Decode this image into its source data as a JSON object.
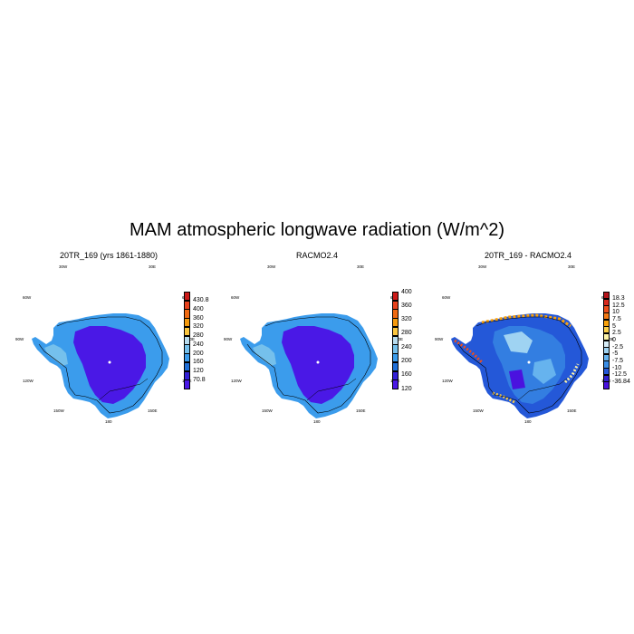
{
  "title": "MAM atmospheric longwave radiation (W/m^2)",
  "panels": [
    {
      "title": "20TR_169 (yrs 1861-1880)",
      "colorbar": {
        "labels": [
          "430.8",
          "400",
          "360",
          "320",
          "280",
          "240",
          "200",
          "160",
          "120",
          "70.8"
        ],
        "colors": [
          "#cc1a18",
          "#e8421d",
          "#f06a12",
          "#f59a0e",
          "#fbc640",
          "#b8dcef",
          "#75c0ec",
          "#3b9cec",
          "#1f6fd8",
          "#3320d6",
          "#4a18e6"
        ]
      },
      "grid_labels": [
        "30W",
        "30E",
        "60W",
        "60E",
        "90W",
        "90E",
        "120W",
        "120E",
        "150W",
        "150E",
        "180"
      ]
    },
    {
      "title": "RACMO2.4",
      "colorbar": {
        "labels": [
          "400",
          "360",
          "320",
          "280",
          "240",
          "200",
          "160",
          "120"
        ],
        "colors": [
          "#cc1a18",
          "#e8421d",
          "#f06a12",
          "#f59a0e",
          "#fbc640",
          "#b8dcef",
          "#75c0ec",
          "#3b9cec",
          "#1f6fd8",
          "#3320d6",
          "#4a18e6"
        ]
      },
      "grid_labels": [
        "30W",
        "30E",
        "60W",
        "60E",
        "90W",
        "90E",
        "120W",
        "120E",
        "150W",
        "150E",
        "180"
      ]
    },
    {
      "title": "20TR_169 - RACMO2.4",
      "colorbar": {
        "labels": [
          "18.3",
          "12.5",
          "10",
          "7.5",
          "5",
          "2.5",
          "0",
          "-2.5",
          "-5",
          "-7.5",
          "-10",
          "-12.5",
          "-36.84"
        ],
        "colors": [
          "#b5141a",
          "#d82a1e",
          "#ee4f1c",
          "#f57a13",
          "#f9a10b",
          "#fbcf4a",
          "#fdf3a8",
          "#d6ecf6",
          "#9fd3f2",
          "#66b3ee",
          "#3a8ee6",
          "#2458d8",
          "#3222d0",
          "#4a12df"
        ]
      },
      "grid_labels": [
        "30W",
        "30E",
        "60W",
        "60E",
        "90W",
        "90E",
        "120W",
        "120E",
        "150W",
        "150E",
        "180"
      ]
    }
  ]
}
